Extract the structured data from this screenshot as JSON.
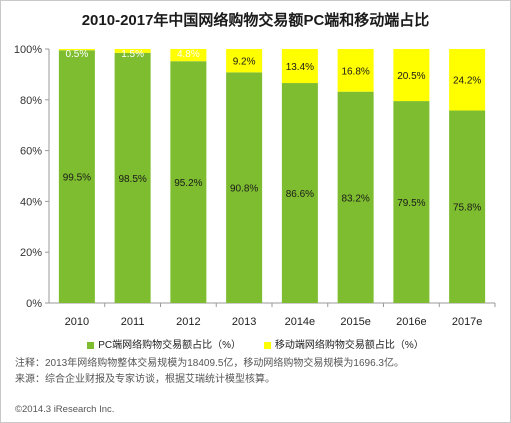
{
  "chart_data": {
    "type": "bar",
    "stacked": true,
    "title": "2010-2017年中国网络购物交易额PC端和移动端占比",
    "categories": [
      "2010",
      "2011",
      "2012",
      "2013",
      "2014e",
      "2015e",
      "2016e",
      "2017e"
    ],
    "series": [
      {
        "name": "PC端网络购物交易额占比（%）",
        "color": "#7dbd2f",
        "values": [
          99.5,
          98.5,
          95.2,
          90.8,
          86.6,
          83.2,
          79.5,
          75.8
        ],
        "labels": [
          "99.5%",
          "98.5%",
          "95.2%",
          "90.8%",
          "86.6%",
          "83.2%",
          "79.5%",
          "75.8%"
        ]
      },
      {
        "name": "移动端网络购物交易额占比（%）",
        "color": "#ffff00",
        "values": [
          0.5,
          1.5,
          4.8,
          9.2,
          13.4,
          16.8,
          20.5,
          24.2
        ],
        "labels": [
          "0.5%",
          "1.5%",
          "4.8%",
          "9.2%",
          "13.4%",
          "16.8%",
          "20.5%",
          "24.2%"
        ]
      }
    ],
    "yticks": [
      "0%",
      "20%",
      "40%",
      "60%",
      "80%",
      "100%"
    ],
    "ylim": [
      0,
      100
    ],
    "grid": false,
    "legend_position": "bottom"
  },
  "notes": {
    "line1": "注释：2013年网络购物整体交易规模为18409.5亿，移动网络购物交易规模为1696.3亿。",
    "line2": "来源：综合企业财报及专家访谈，根据艾瑞统计模型核算。"
  },
  "footer": "©2014.3 iResearch Inc."
}
